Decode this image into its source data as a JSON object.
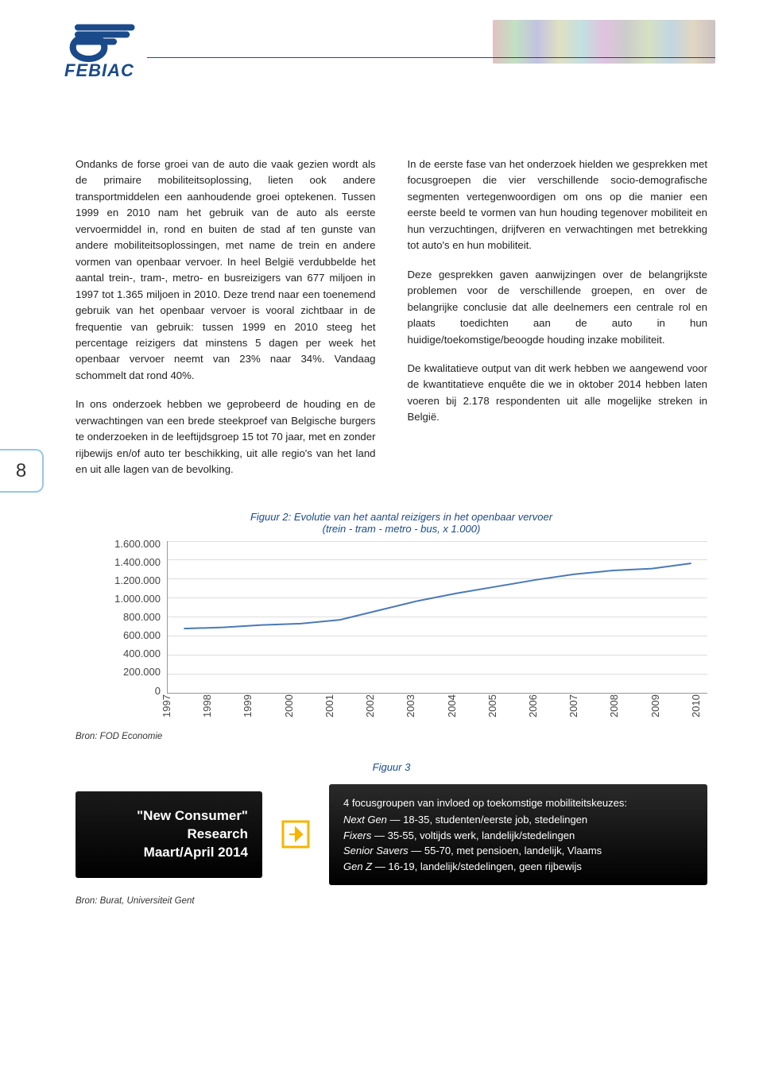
{
  "header": {
    "logo_text": "FEBIAC",
    "logo_color": "#1a4a8a"
  },
  "page_number": "8",
  "left_col": {
    "p1": "Ondanks de forse groei van de auto die vaak gezien wordt als de primaire mobiliteitsoplossing, lieten ook andere transportmiddelen een aanhoudende groei optekenen. Tussen 1999 en 2010 nam het gebruik van de auto als eerste vervoermiddel in, rond en buiten de stad af ten gunste van andere mobiliteitsoplossingen, met name de trein en andere vormen van openbaar vervoer. In heel België verdubbelde het aantal trein-, tram-, metro- en busreizigers van 677 miljoen in 1997 tot 1.365 miljoen in 2010. Deze trend naar een toenemend gebruik van het openbaar vervoer is vooral zichtbaar in de frequentie van gebruik: tussen 1999 en 2010 steeg het percentage reizigers dat minstens 5 dagen per week het openbaar vervoer neemt van 23% naar 34%. Vandaag schommelt dat rond 40%.",
    "p2": "In ons onderzoek hebben we geprobeerd de houding en de verwachtingen van een brede steekproef van Belgische burgers te onderzoeken in de leeftijdsgroep 15 tot 70 jaar, met en zonder rijbewijs en/of auto ter beschikking, uit alle regio's van het land en uit alle lagen van de bevolking."
  },
  "right_col": {
    "p1": "In de eerste fase van het onderzoek hielden we gesprekken met focusgroepen die vier verschillende socio-demografische segmenten vertegenwoordigen om ons op die manier een eerste beeld te vormen van hun houding tegenover mobiliteit en hun verzuchtingen, drijfveren en verwachtingen met betrekking tot auto's en hun mobiliteit.",
    "p2": "Deze gesprekken gaven aanwijzingen over de belangrijkste problemen voor de verschillende groepen, en over de belangrijke conclusie dat alle deelnemers een centrale rol en plaats toedichten aan de auto in hun huidige/toekomstige/beoogde houding inzake mobiliteit.",
    "p3": "De kwalitatieve output van dit werk hebben we aangewend voor de kwantitatieve enquête die we in oktober 2014 hebben laten voeren bij 2.178 respondenten uit alle mogelijke streken in België."
  },
  "chart": {
    "type": "line",
    "title": "Figuur 2: Evolutie van het aantal reizigers in het openbaar vervoer\n(trein - tram - metro - bus, x 1.000)",
    "y_ticks": [
      "1.600.000",
      "1.400.000",
      "1.200.000",
      "1.000.000",
      "800.000",
      "600.000",
      "400.000",
      "200.000",
      "0"
    ],
    "y_max": 1600000,
    "x_ticks": [
      "1997",
      "1998",
      "1999",
      "2000",
      "2001",
      "2002",
      "2003",
      "2004",
      "2005",
      "2006",
      "2007",
      "2008",
      "2009",
      "2010"
    ],
    "values": [
      677000,
      690000,
      715000,
      730000,
      770000,
      870000,
      970000,
      1050000,
      1120000,
      1190000,
      1250000,
      1290000,
      1310000,
      1365000
    ],
    "line_color": "#4a7ab5",
    "line_width": 2,
    "grid_color": "#dddddd",
    "axis_color": "#999999",
    "tick_fontsize": 13
  },
  "source1": "Bron: FOD Economie",
  "fig3": {
    "title": "Figuur 3",
    "left": {
      "l1": "\"New Consumer\"",
      "l2": "Research",
      "l3": "Maart/April 2014"
    },
    "arrow_color": "#f5b400",
    "right": {
      "head": "4 focusgroupen van invloed op toekomstige mobiliteitskeuzes:",
      "lines": [
        "Next Gen — 18-35, studenten/eerste job, stedelingen",
        "Fixers — 35-55, voltijds werk, landelijk/stedelingen",
        "Senior Savers — 55-70, met pensioen, landelijk, Vlaams",
        "Gen Z — 16-19, landelijk/stedelingen, geen rijbewijs"
      ]
    },
    "bg": "#111111"
  },
  "source2": "Bron: Burat, Universiteit Gent"
}
